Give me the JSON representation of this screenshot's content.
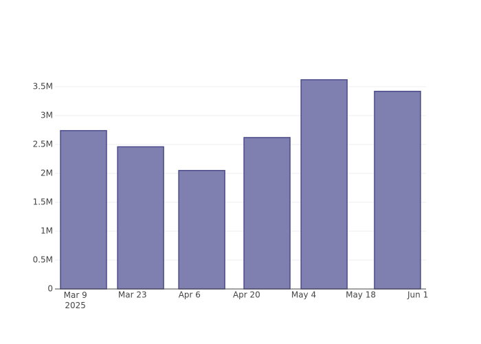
{
  "chart_data": {
    "type": "bar",
    "x": [
      "2025-03-11",
      "2025-03-25",
      "2025-04-09",
      "2025-04-25",
      "2025-05-09",
      "2025-05-27"
    ],
    "values": [
      2740000,
      2460000,
      2050000,
      2620000,
      3620000,
      3420000
    ],
    "color": "#7f7fb0",
    "edge_color": "#4b4b8c",
    "xlim": [
      "2025-03-04",
      "2025-06-03"
    ],
    "xticks": [
      {
        "value": "2025-03-09",
        "label": "Mar 9\n2025"
      },
      {
        "value": "2025-03-23",
        "label": "Mar 23"
      },
      {
        "value": "2025-04-06",
        "label": "Apr 6"
      },
      {
        "value": "2025-04-20",
        "label": "Apr 20"
      },
      {
        "value": "2025-05-04",
        "label": "May 4"
      },
      {
        "value": "2025-05-18",
        "label": "May 18"
      },
      {
        "value": "2025-06-01",
        "label": "Jun 1"
      }
    ],
    "ylim": [
      0,
      3800000
    ],
    "yticks": [
      0,
      {
        "value": 500000,
        "label": "0.5M"
      },
      {
        "value": 1000000,
        "label": "1M"
      },
      {
        "value": 1500000,
        "label": "1.5M"
      },
      {
        "value": 2000000,
        "label": "2M"
      },
      {
        "value": 2500000,
        "label": "2.5M"
      },
      {
        "value": 3000000,
        "label": "3M"
      },
      {
        "value": 3500000,
        "label": "3.5M"
      }
    ],
    "grid": true
  }
}
